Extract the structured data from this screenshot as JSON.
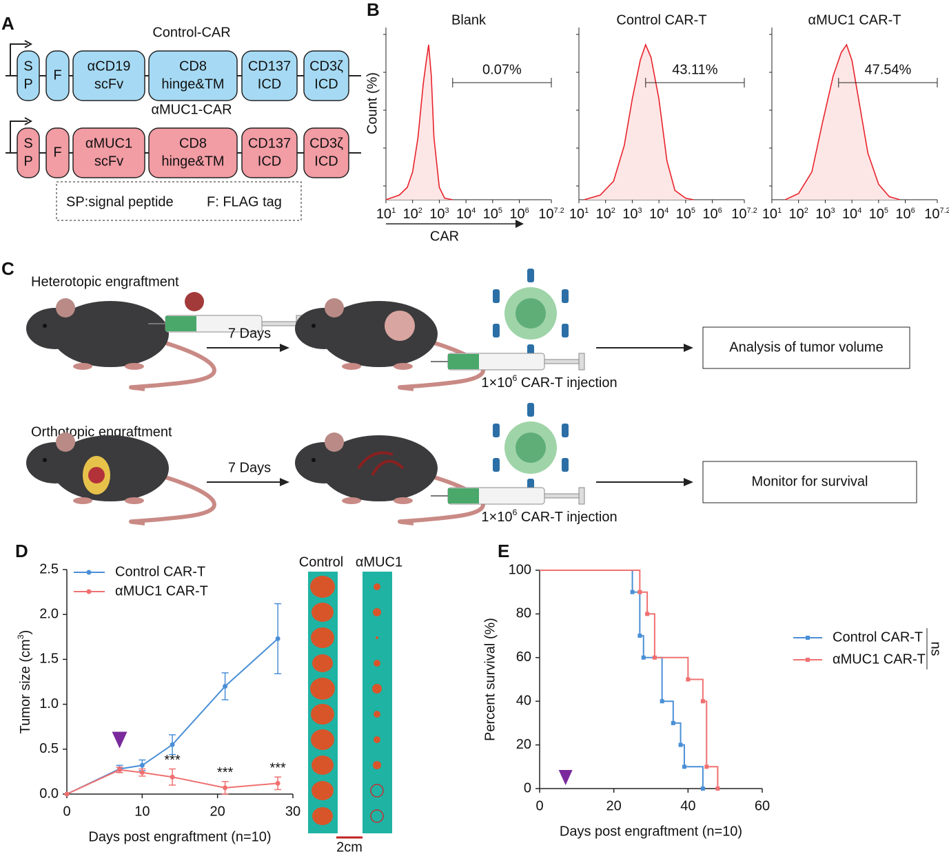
{
  "panel_labels": {
    "a": "A",
    "b": "B",
    "c": "C",
    "d": "D",
    "e": "E"
  },
  "constructs": {
    "items": [
      {
        "name": "Control-CAR",
        "color": "#a6daf4",
        "domains": [
          [
            "S",
            "P"
          ],
          [
            "F"
          ],
          [
            "αCD19",
            "scFv"
          ],
          [
            "CD8",
            "hinge&TM"
          ],
          [
            "CD137",
            "ICD"
          ],
          [
            "CD3ζ",
            "ICD"
          ]
        ]
      },
      {
        "name": "αMUC1-CAR",
        "color": "#f29ca4",
        "domains": [
          [
            "S",
            "P"
          ],
          [
            "F"
          ],
          [
            "αMUC1",
            "scFv"
          ],
          [
            "CD8",
            "hinge&TM"
          ],
          [
            "CD137",
            "ICD"
          ],
          [
            "CD3ζ",
            "ICD"
          ]
        ]
      }
    ],
    "legend": [
      "SP:signal peptide",
      "F: FLAG tag"
    ]
  },
  "flow": {
    "tick_base": "10",
    "ticks": [
      1,
      2,
      3,
      4,
      5,
      6,
      7.2
    ],
    "xlim": [
      1,
      7.2
    ],
    "ylim": [
      0,
      100
    ],
    "ylabel": "Count (%)",
    "xlabel": "CAR",
    "color": "#e8222a",
    "panels": [
      {
        "title": "Blank",
        "gate_label": "0.07%",
        "gate": [
          3.5,
          7.2
        ],
        "x": [
          1,
          1.5,
          1.8,
          2.0,
          2.2,
          2.4,
          2.5,
          2.6,
          2.7,
          2.8,
          3.0,
          3.2,
          3.5
        ],
        "counts": [
          0,
          3,
          8,
          18,
          40,
          75,
          88,
          100,
          80,
          40,
          8,
          1,
          0
        ]
      },
      {
        "title": "Control CAR-T",
        "gate_label": "43.11%",
        "gate": [
          3.5,
          7.2
        ],
        "x": [
          1.2,
          1.8,
          2.3,
          2.7,
          3.0,
          3.3,
          3.5,
          3.7,
          4.0,
          4.3,
          4.6,
          5.0,
          5.3
        ],
        "counts": [
          0,
          3,
          12,
          35,
          65,
          90,
          100,
          92,
          65,
          25,
          6,
          1,
          0
        ]
      },
      {
        "title": "αMUC1 CAR-T",
        "gate_label": "47.54%",
        "gate": [
          3.5,
          7.2
        ],
        "x": [
          1.5,
          2.0,
          2.5,
          2.9,
          3.3,
          3.6,
          3.8,
          4.0,
          4.3,
          4.6,
          5.0,
          5.4,
          5.8
        ],
        "counts": [
          0,
          4,
          18,
          50,
          80,
          95,
          100,
          90,
          60,
          30,
          10,
          2,
          0
        ]
      }
    ]
  },
  "scheme": {
    "rows": [
      {
        "title": "Heterotopic engraftment",
        "wait": "7 Days",
        "injection": [
          "1×10",
          "6",
          " CAR-T injection"
        ],
        "readout": "Analysis of tumor volume"
      },
      {
        "title": "Orthotopic engraftment",
        "wait": "7 Days",
        "injection": [
          "1×10",
          "6",
          " CAR-T injection"
        ],
        "readout": "Monitor for survival"
      }
    ]
  },
  "photos": {
    "labels": [
      "Control",
      "αMUC1"
    ],
    "scale": "2cm"
  },
  "chart_data": [
    {
      "type": "line",
      "xlabel": "Days post engraftment (n=10)",
      "ylabel": [
        "Tumor size (cm",
        "3",
        ")"
      ],
      "xlim": [
        0,
        30
      ],
      "ylim": [
        0,
        2.5
      ],
      "xticks": [
        0,
        10,
        20,
        30
      ],
      "yticks": [
        {
          "value": 0,
          "label": "0.0"
        },
        0.5,
        {
          "value": 1,
          "label": "1.0"
        },
        1.5,
        {
          "value": 2,
          "label": "2.0"
        },
        2.5
      ],
      "x": [
        0,
        7,
        10,
        14,
        21,
        28
      ],
      "series": [
        {
          "name": "Control CAR-T",
          "color": "#4a8fd6",
          "values": [
            0,
            0.28,
            0.32,
            0.55,
            1.2,
            1.73
          ],
          "errors": [
            0,
            0.04,
            0.06,
            0.11,
            0.15,
            0.39
          ]
        },
        {
          "name": "αMUC1 CAR-T",
          "color": "#f07070",
          "values": [
            0,
            0.27,
            0.24,
            0.19,
            0.07,
            0.12
          ],
          "errors": [
            0,
            0.03,
            0.04,
            0.09,
            0.07,
            0.07
          ]
        }
      ],
      "annotations": [
        {
          "x": 14,
          "text": "***"
        },
        {
          "x": 21,
          "text": "***"
        },
        {
          "x": 28,
          "text": "***"
        }
      ],
      "treatment_day": 7,
      "legend": "upper left"
    },
    {
      "type": "step",
      "xlabel": "Days post engraftment (n=10)",
      "ylabel": "Percent survival (%)",
      "xlim": [
        0,
        60
      ],
      "ylim": [
        0,
        100
      ],
      "xticks": [
        0,
        20,
        40,
        60
      ],
      "yticks": [
        0,
        20,
        40,
        60,
        80,
        100
      ],
      "series": [
        {
          "name": "Control CAR-T",
          "color": "#4a8fd6",
          "x": [
            0,
            25,
            27,
            28,
            33,
            36,
            38,
            39,
            44
          ],
          "values": [
            100,
            90,
            70,
            60,
            40,
            30,
            20,
            10,
            0
          ]
        },
        {
          "name": "αMUC1 CAR-T",
          "color": "#f07070",
          "x": [
            0,
            27,
            29,
            31,
            40,
            44,
            45,
            48
          ],
          "values": [
            100,
            90,
            80,
            60,
            50,
            40,
            10,
            0
          ]
        }
      ],
      "test_label": "ns",
      "treatment_day": 7,
      "legend": "right"
    }
  ]
}
